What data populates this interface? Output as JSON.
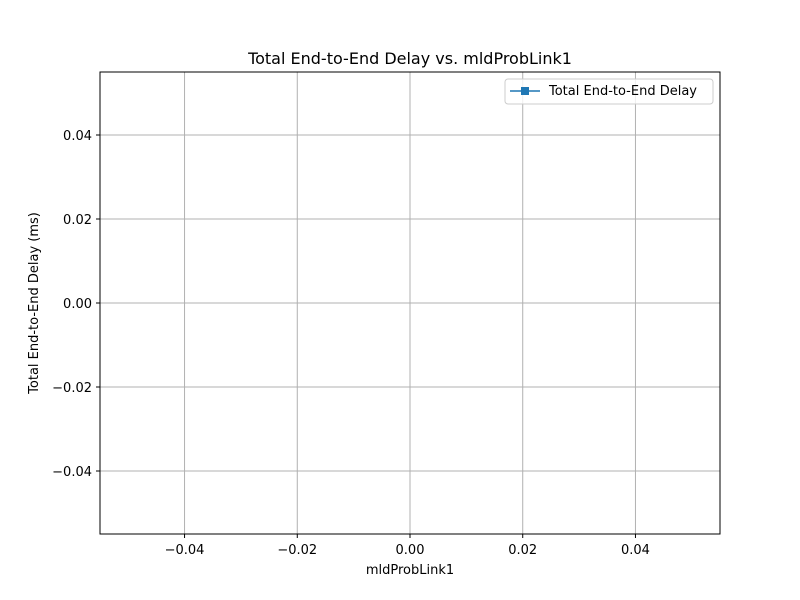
{
  "chart_data": {
    "type": "line",
    "title": "Total End-to-End Delay vs. mldProbLink1",
    "xlabel": "mldProbLink1",
    "ylabel": "Total End-to-End Delay (ms)",
    "xlim": [
      -0.055,
      0.055
    ],
    "ylim": [
      -0.055,
      0.055
    ],
    "xticks": [
      -0.04,
      -0.02,
      0.0,
      0.02,
      0.04
    ],
    "yticks": [
      -0.04,
      -0.02,
      0.0,
      0.02,
      0.04
    ],
    "xtick_labels": [
      "−0.04",
      "−0.02",
      "0.00",
      "0.02",
      "0.04"
    ],
    "ytick_labels": [
      "−0.04",
      "−0.02",
      "0.00",
      "0.02",
      "0.04"
    ],
    "grid": true,
    "legend_position": "top-right",
    "series": [
      {
        "name": "Total End-to-End Delay",
        "color": "#1f77b4",
        "marker": "square",
        "x": [],
        "y": []
      }
    ]
  }
}
